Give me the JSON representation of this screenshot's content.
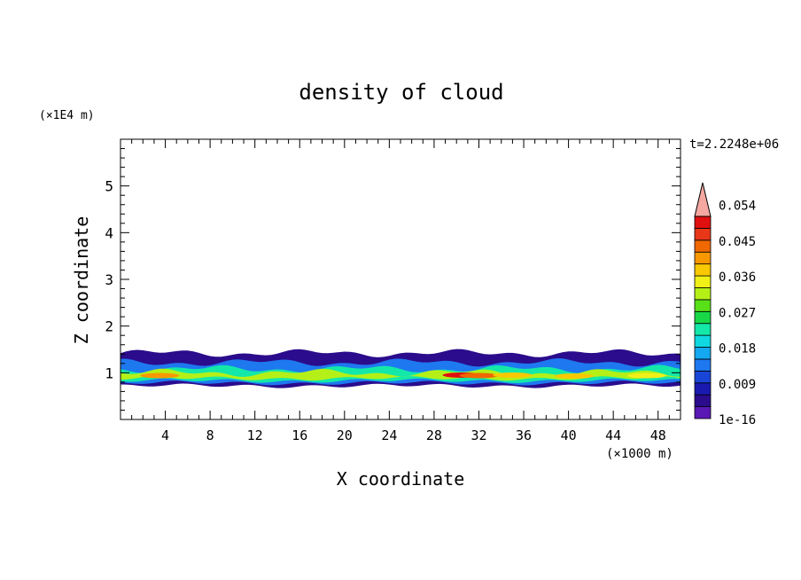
{
  "chart_data": {
    "type": "heatmap",
    "title": "density of cloud",
    "xlabel": "X coordinate",
    "ylabel": "Z coordinate",
    "x_unit": "(×1000 m)",
    "y_unit": "(×1E4 m)",
    "time_label": "t=2.2248e+06",
    "xlim": [
      0,
      50
    ],
    "ylim": [
      0,
      6
    ],
    "x_ticks": [
      4,
      8,
      12,
      16,
      20,
      24,
      28,
      32,
      36,
      40,
      44,
      48
    ],
    "y_ticks": [
      1,
      2,
      3,
      4,
      5
    ],
    "colorbar": {
      "labels": [
        "1e-16",
        "0.009",
        "0.018",
        "0.027",
        "0.036",
        "0.045",
        "0.054"
      ],
      "colors": [
        "#5a18b4",
        "#2a0c8c",
        "#1a1ab0",
        "#1a46d8",
        "#1e78f0",
        "#14a8f0",
        "#10d8e0",
        "#14e8a8",
        "#18d848",
        "#58e018",
        "#b4f018",
        "#f0f018",
        "#f8c800",
        "#f89800",
        "#f06800",
        "#e83818",
        "#e01010"
      ],
      "extend_color": "#f4a8a0"
    },
    "field": {
      "description_bands": [
        {
          "z_range": [
            0.72,
            1.42
          ],
          "level": 1
        },
        {
          "z_range": [
            0.78,
            1.22
          ],
          "level": 4
        },
        {
          "z_range": [
            0.83,
            1.08
          ],
          "level": 7
        },
        {
          "z_range": [
            0.88,
            1.0
          ],
          "level": 10
        }
      ],
      "peak_level": 16
    }
  }
}
